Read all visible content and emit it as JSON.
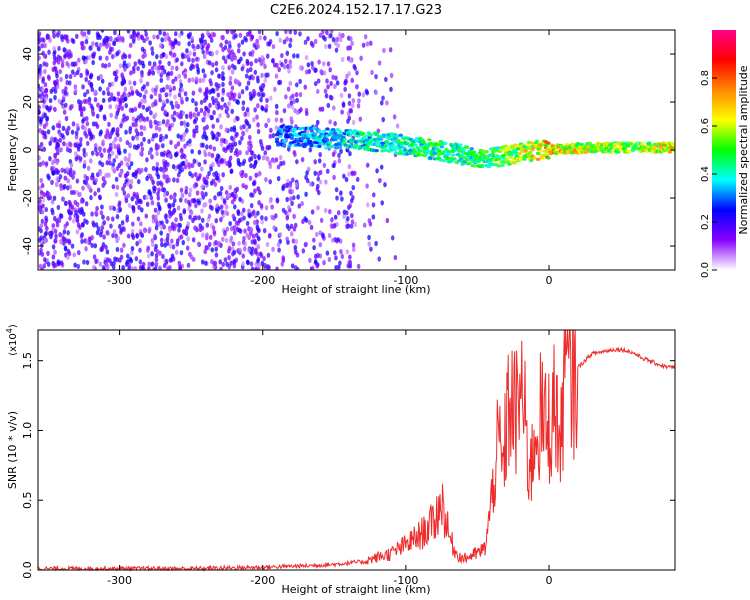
{
  "title": "C2E6.2024.152.17.17.G23",
  "chart_data": [
    {
      "type": "heatmap",
      "title": "C2E6.2024.152.17.17.G23",
      "xlabel": "Height of straight line (km)",
      "ylabel": "Frequency (Hz)",
      "xlim": [
        -357,
        88
      ],
      "ylim": [
        -50,
        50
      ],
      "xticks": [
        -300,
        -200,
        -100,
        0
      ],
      "xtick_labels": [
        "-300",
        "-200",
        "-100",
        "0"
      ],
      "yticks": [
        -40,
        -20,
        0,
        20,
        40
      ],
      "ytick_labels": [
        "-40",
        "-20",
        "0",
        "20",
        "40"
      ],
      "colorbar": {
        "label": "Normalized spectral amplitude",
        "range": [
          0.0,
          1.0
        ],
        "ticks": [
          0.0,
          0.2,
          0.4,
          0.6,
          0.8
        ],
        "tick_labels": [
          "0.0",
          "0.2",
          "0.4",
          "0.6",
          "0.8"
        ],
        "colormap": [
          "#ffffff",
          "#8800ff",
          "#0000ff",
          "#00ffff",
          "#00ff00",
          "#ffff00",
          "#ff8800",
          "#ff0000",
          "#ff0088"
        ]
      },
      "ridge": {
        "x": [
          -190,
          -160,
          -130,
          -110,
          -90,
          -70,
          -50,
          -35,
          -20,
          0,
          30,
          60,
          88
        ],
        "y": [
          6,
          5,
          4,
          3,
          1,
          -1,
          -3,
          -3,
          -1,
          0,
          1,
          1,
          1
        ],
        "amplitude": [
          0.3,
          0.35,
          0.4,
          0.4,
          0.45,
          0.45,
          0.45,
          0.5,
          0.6,
          0.7,
          0.6,
          0.55,
          0.7
        ]
      },
      "noise_region_x": [
        -357,
        -135
      ]
    },
    {
      "type": "line",
      "xlabel": "Height of straight line (km)",
      "ylabel": "SNR (10 * v/v)",
      "y_multiplier": "(x10",
      "y_multiplier_exp": "4",
      "y_multiplier_close": ")",
      "xlim": [
        -357,
        88
      ],
      "ylim": [
        0.0,
        1.72
      ],
      "xticks": [
        -300,
        -200,
        -100,
        0
      ],
      "xtick_labels": [
        "-300",
        "-200",
        "-100",
        "0"
      ],
      "yticks": [
        0.0,
        0.5,
        1.0,
        1.5
      ],
      "ytick_labels": [
        "0.0",
        "0.5",
        "1.0",
        "1.5"
      ],
      "series": [
        {
          "name": "SNR",
          "color": "#ee2b2b",
          "x": [
            -357,
            -300,
            -250,
            -200,
            -170,
            -150,
            -130,
            -110,
            -100,
            -90,
            -80,
            -75,
            -70,
            -65,
            -60,
            -55,
            -50,
            -45,
            -42,
            -40,
            -38,
            -35,
            -32,
            -30,
            -28,
            -25,
            -22,
            -20,
            -18,
            -15,
            -12,
            -10,
            -8,
            -5,
            -2,
            0,
            5,
            8,
            10,
            12,
            15,
            20,
            25,
            30,
            35,
            40,
            45,
            50,
            55,
            60,
            65,
            70,
            75,
            80,
            88
          ],
          "y": [
            0.01,
            0.01,
            0.01,
            0.02,
            0.03,
            0.04,
            0.06,
            0.12,
            0.18,
            0.25,
            0.35,
            0.5,
            0.25,
            0.12,
            0.08,
            0.1,
            0.12,
            0.15,
            0.35,
            0.5,
            0.75,
            0.9,
            0.7,
            1.0,
            1.2,
            1.15,
            1.1,
            1.35,
            1.2,
            0.8,
            0.75,
            1.0,
            1.05,
            1.1,
            1.0,
            1.05,
            1.2,
            0.8,
            1.35,
            1.45,
            1.4,
            1.45,
            1.5,
            1.55,
            1.56,
            1.57,
            1.58,
            1.58,
            1.57,
            1.55,
            1.52,
            1.5,
            1.48,
            1.46,
            1.45
          ]
        }
      ]
    }
  ]
}
